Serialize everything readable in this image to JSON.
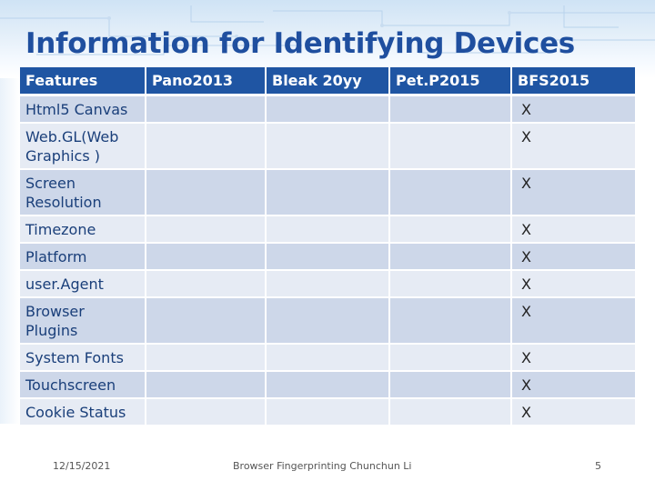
{
  "title": "Information for Identifying Devices",
  "table": {
    "headers": [
      "Features",
      "Pano2013",
      "Bleak 20yy",
      "Pet.P2015",
      "BFS2015"
    ],
    "rows": [
      {
        "feature": "Html5 Canvas",
        "marks": [
          "",
          "",
          "",
          "X"
        ]
      },
      {
        "feature": "Web.GL(Web Graphics )",
        "marks": [
          "",
          "",
          "",
          "X"
        ]
      },
      {
        "feature": "Screen Resolution",
        "marks": [
          "",
          "",
          "",
          "X"
        ]
      },
      {
        "feature": "Timezone",
        "marks": [
          "",
          "",
          "",
          "X"
        ]
      },
      {
        "feature": "Platform",
        "marks": [
          "",
          "",
          "",
          "X"
        ]
      },
      {
        "feature": "user.Agent",
        "marks": [
          "",
          "",
          "",
          "X"
        ]
      },
      {
        "feature": "Browser Plugins",
        "marks": [
          "",
          "",
          "",
          "X"
        ]
      },
      {
        "feature": "System Fonts",
        "marks": [
          "",
          "",
          "",
          "X"
        ]
      },
      {
        "feature": "Touchscreen",
        "marks": [
          "",
          "",
          "",
          "X"
        ]
      },
      {
        "feature": "Cookie Status",
        "marks": [
          "",
          "",
          "",
          "X"
        ]
      }
    ]
  },
  "footer": {
    "date": "12/15/2021",
    "center": "Browser Fingerprinting Chunchun Li",
    "page": "5"
  },
  "colors": {
    "title": "#1f4f9f",
    "header_bg": "#1f55a3",
    "row_dark": "#cdd7e9",
    "row_light": "#e6ebf4"
  }
}
